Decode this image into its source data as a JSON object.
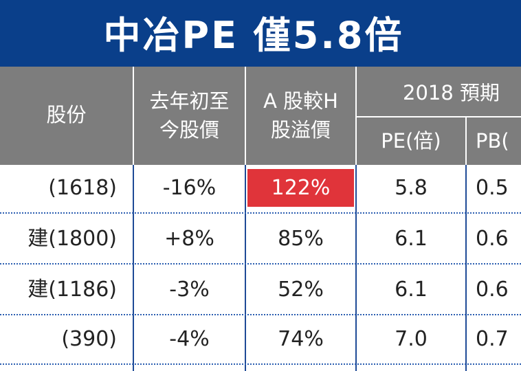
{
  "title": "中冶PE 僅5.8倍",
  "headers": {
    "stock": "股份",
    "ytd_line1": "去年初至",
    "ytd_line2": "今股價",
    "premium_line1": "A 股較H",
    "premium_line2": "股溢價",
    "forecast": "2018 預期",
    "pe": "PE(倍)",
    "pb": "PB("
  },
  "rows": [
    {
      "stock": "(1618)",
      "ytd": "-16%",
      "premium": "122%",
      "pe": "5.8",
      "pb": "0.5",
      "highlight": true
    },
    {
      "stock": "建(1800)",
      "ytd": "+8%",
      "premium": "85%",
      "pe": "6.1",
      "pb": "0.6",
      "highlight": false
    },
    {
      "stock": "建(1186)",
      "ytd": "-3%",
      "premium": "52%",
      "pe": "6.1",
      "pb": "0.6",
      "highlight": false
    },
    {
      "stock": "(390)",
      "ytd": "-4%",
      "premium": "74%",
      "pe": "7.0",
      "pb": "0.7",
      "highlight": false
    }
  ],
  "colors": {
    "title_bg": "#0a3f8a",
    "header_bg": "#7d7d7d",
    "highlight": "#e0343a"
  }
}
